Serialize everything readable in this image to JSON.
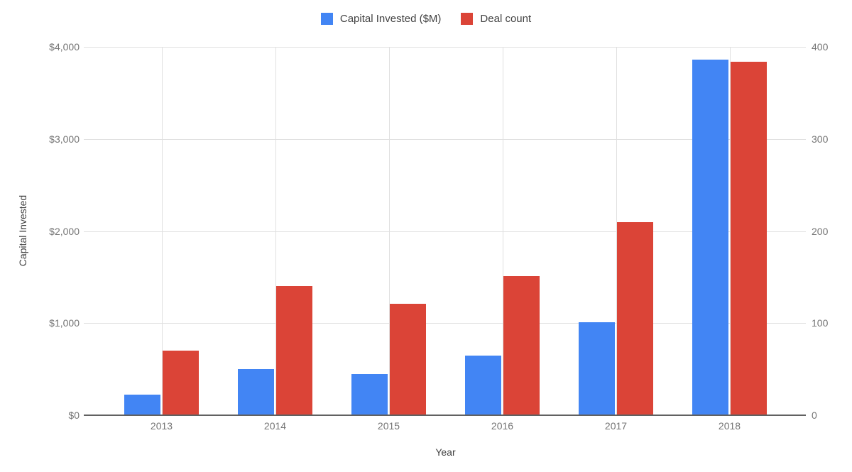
{
  "chart_data": {
    "type": "bar",
    "title": "",
    "categories": [
      "2013",
      "2014",
      "2015",
      "2016",
      "2017",
      "2018"
    ],
    "series": [
      {
        "name": "Capital Invested ($M)",
        "axis": "left",
        "color": "#4285F4",
        "values": [
          220,
          500,
          450,
          650,
          1010,
          3860
        ]
      },
      {
        "name": "Deal count",
        "axis": "right",
        "color": "#DB4437",
        "values": [
          70,
          140,
          121,
          151,
          210,
          384
        ]
      }
    ],
    "xlabel": "Year",
    "left_axis": {
      "title": "Capital Invested",
      "min": 0,
      "max": 4000,
      "tick_labels": [
        "$0",
        "$1,000",
        "$2,000",
        "$3,000",
        "$4,000"
      ]
    },
    "right_axis": {
      "title": "",
      "min": 0,
      "max": 400,
      "tick_labels": [
        "0",
        "100",
        "200",
        "300",
        "400"
      ]
    },
    "grid": true,
    "legend_position": "top"
  },
  "colors": {
    "series_blue": "#4285F4",
    "series_red": "#DB4437",
    "gridline": "#e0e0e0",
    "axis_line": "#616161",
    "tick_label": "#757575",
    "axis_title": "#424242",
    "background": "#ffffff"
  }
}
